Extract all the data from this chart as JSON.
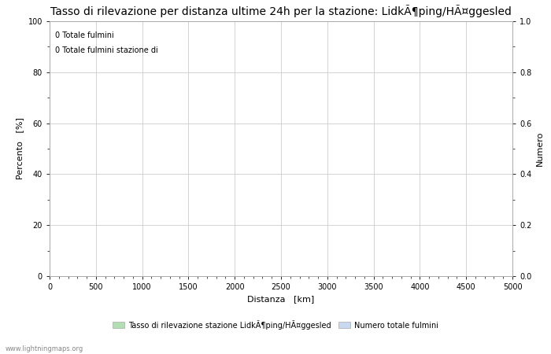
{
  "title": "Tasso di rilevazione per distanza ultime 24h per la stazione: LidkÃ¶ping/HÃ¤ggesled",
  "xlabel": "Distanza   [km]",
  "ylabel_left": "Percento   [%]",
  "ylabel_right": "Numero",
  "xlim": [
    0,
    5000
  ],
  "ylim_left": [
    0,
    100
  ],
  "ylim_right": [
    0,
    1.0
  ],
  "xticks": [
    0,
    500,
    1000,
    1500,
    2000,
    2500,
    3000,
    3500,
    4000,
    4500,
    5000
  ],
  "yticks_left": [
    0,
    20,
    40,
    60,
    80,
    100
  ],
  "yticks_right": [
    0.0,
    0.2,
    0.4,
    0.6,
    0.8,
    1.0
  ],
  "annotation_line1": "0 Totale fulmini",
  "annotation_line2": "0 Totale fulmini stazione di",
  "legend_entry1": "Tasso di rilevazione stazione LidkÃ¶ping/HÃ¤ggesled",
  "legend_entry2": "Numero totale fulmini",
  "legend_color1": "#b2dfb2",
  "legend_color2": "#c8d8f0",
  "grid_color": "#cccccc",
  "background_color": "#ffffff",
  "watermark": "www.lightningmaps.org",
  "title_fontsize": 10,
  "axis_fontsize": 8,
  "tick_fontsize": 7,
  "annotation_fontsize": 7,
  "legend_fontsize": 7,
  "watermark_fontsize": 6
}
